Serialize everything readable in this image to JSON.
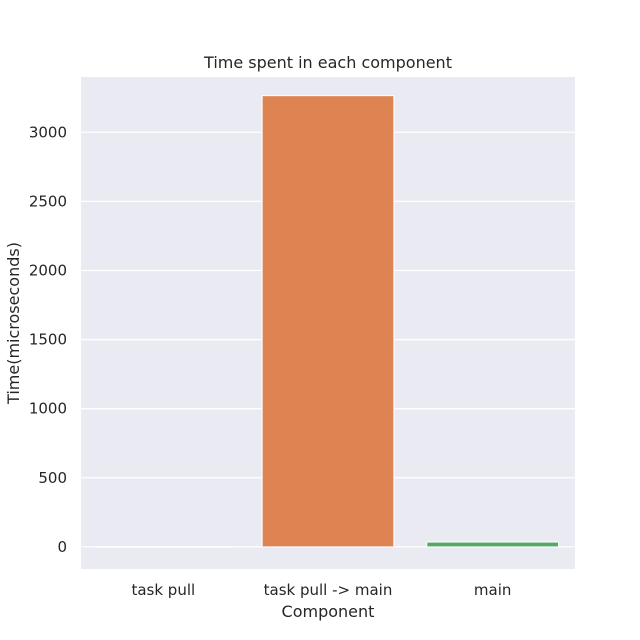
{
  "chart_data": {
    "type": "bar",
    "title": "Time spent in each component",
    "xlabel": "Component",
    "ylabel": "Time(microseconds)",
    "categories": [
      "task pull",
      "task pull -> main",
      "main"
    ],
    "values": [
      1,
      3265,
      35
    ],
    "colors": [
      "#4c72b0",
      "#dd8452",
      "#55a868"
    ],
    "ylim": [
      -160,
      3400
    ],
    "yticks": [
      0,
      500,
      1000,
      1500,
      2000,
      2500,
      3000
    ],
    "grid": true,
    "legend": "none",
    "background": "#eaeaf2"
  }
}
